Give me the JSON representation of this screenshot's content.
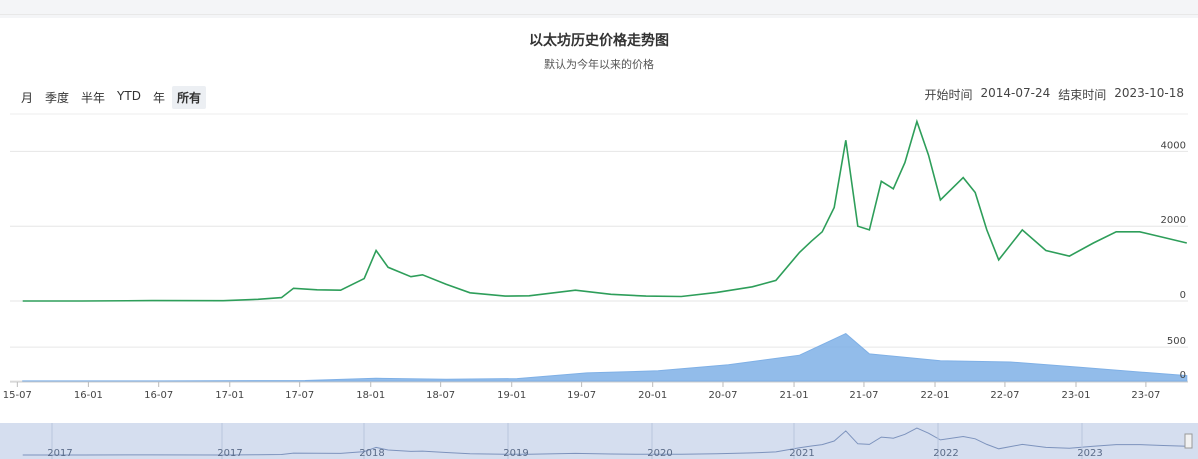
{
  "header": {
    "title": "以太坊历史价格走势图",
    "subtitle": "默认为今年以来的价格"
  },
  "ranges": [
    "月",
    "季度",
    "半年",
    "YTD",
    "年",
    "所有"
  ],
  "active_range": "所有",
  "date_range": {
    "start_label": "开始时间",
    "start": "2014-07-24",
    "end_label": "结束时间",
    "end": "2023-10-18"
  },
  "colors": {
    "price": "#2e9e5a",
    "volume": "#7fb0e6",
    "navigator": "#d5deef"
  },
  "chart_data": {
    "type": "line",
    "x_ticks": [
      "15-07",
      "16-01",
      "16-07",
      "17-01",
      "17-07",
      "18-01",
      "18-07",
      "19-01",
      "19-07",
      "20-01",
      "20-07",
      "21-01",
      "21-07",
      "22-01",
      "22-07",
      "23-01",
      "23-07"
    ],
    "price_axis": {
      "ticks": [
        "0",
        "2000",
        "4000"
      ],
      "range": [
        0,
        5000
      ]
    },
    "volume_axis": {
      "ticks": [
        "0",
        "500"
      ],
      "range": [
        0,
        900
      ]
    },
    "series": [
      {
        "role": "price",
        "x": [
          "2015-07",
          "2015-12",
          "2016-06",
          "2016-12",
          "2017-03",
          "2017-05",
          "2017-06",
          "2017-08",
          "2017-10",
          "2017-12",
          "2018-01",
          "2018-02",
          "2018-04",
          "2018-05",
          "2018-07",
          "2018-09",
          "2018-12",
          "2019-02",
          "2019-06",
          "2019-09",
          "2019-12",
          "2020-03",
          "2020-06",
          "2020-09",
          "2020-11",
          "2021-01",
          "2021-02",
          "2021-03",
          "2021-04",
          "2021-05",
          "2021-06",
          "2021-07",
          "2021-08",
          "2021-09",
          "2021-10",
          "2021-11",
          "2021-12",
          "2022-01",
          "2022-03",
          "2022-04",
          "2022-05",
          "2022-06",
          "2022-08",
          "2022-10",
          "2022-12",
          "2023-02",
          "2023-04",
          "2023-06",
          "2023-08",
          "2023-10"
        ],
        "y": [
          1,
          1,
          12,
          8,
          45,
          90,
          340,
          300,
          290,
          600,
          1350,
          900,
          650,
          700,
          450,
          220,
          130,
          140,
          290,
          180,
          130,
          120,
          230,
          380,
          550,
          1300,
          1600,
          1850,
          2500,
          4300,
          2000,
          1900,
          3200,
          3000,
          3700,
          4800,
          3900,
          2700,
          3300,
          2900,
          1900,
          1100,
          1900,
          1350,
          1200,
          1550,
          1850,
          1850,
          1700,
          1550
        ]
      },
      {
        "role": "volume",
        "x": [
          "2015-07",
          "2016-07",
          "2017-07",
          "2018-01",
          "2018-07",
          "2019-01",
          "2019-07",
          "2020-01",
          "2020-07",
          "2021-01",
          "2021-05",
          "2021-07",
          "2022-01",
          "2022-07",
          "2023-01",
          "2023-07",
          "2023-10"
        ],
        "y": [
          1,
          2,
          8,
          40,
          25,
          35,
          120,
          150,
          240,
          380,
          700,
          400,
          300,
          280,
          200,
          120,
          80
        ]
      }
    ],
    "navigator_ticks": [
      "2017",
      "2017",
      "2018",
      "2019",
      "2020",
      "2021",
      "2022",
      "2023"
    ]
  }
}
